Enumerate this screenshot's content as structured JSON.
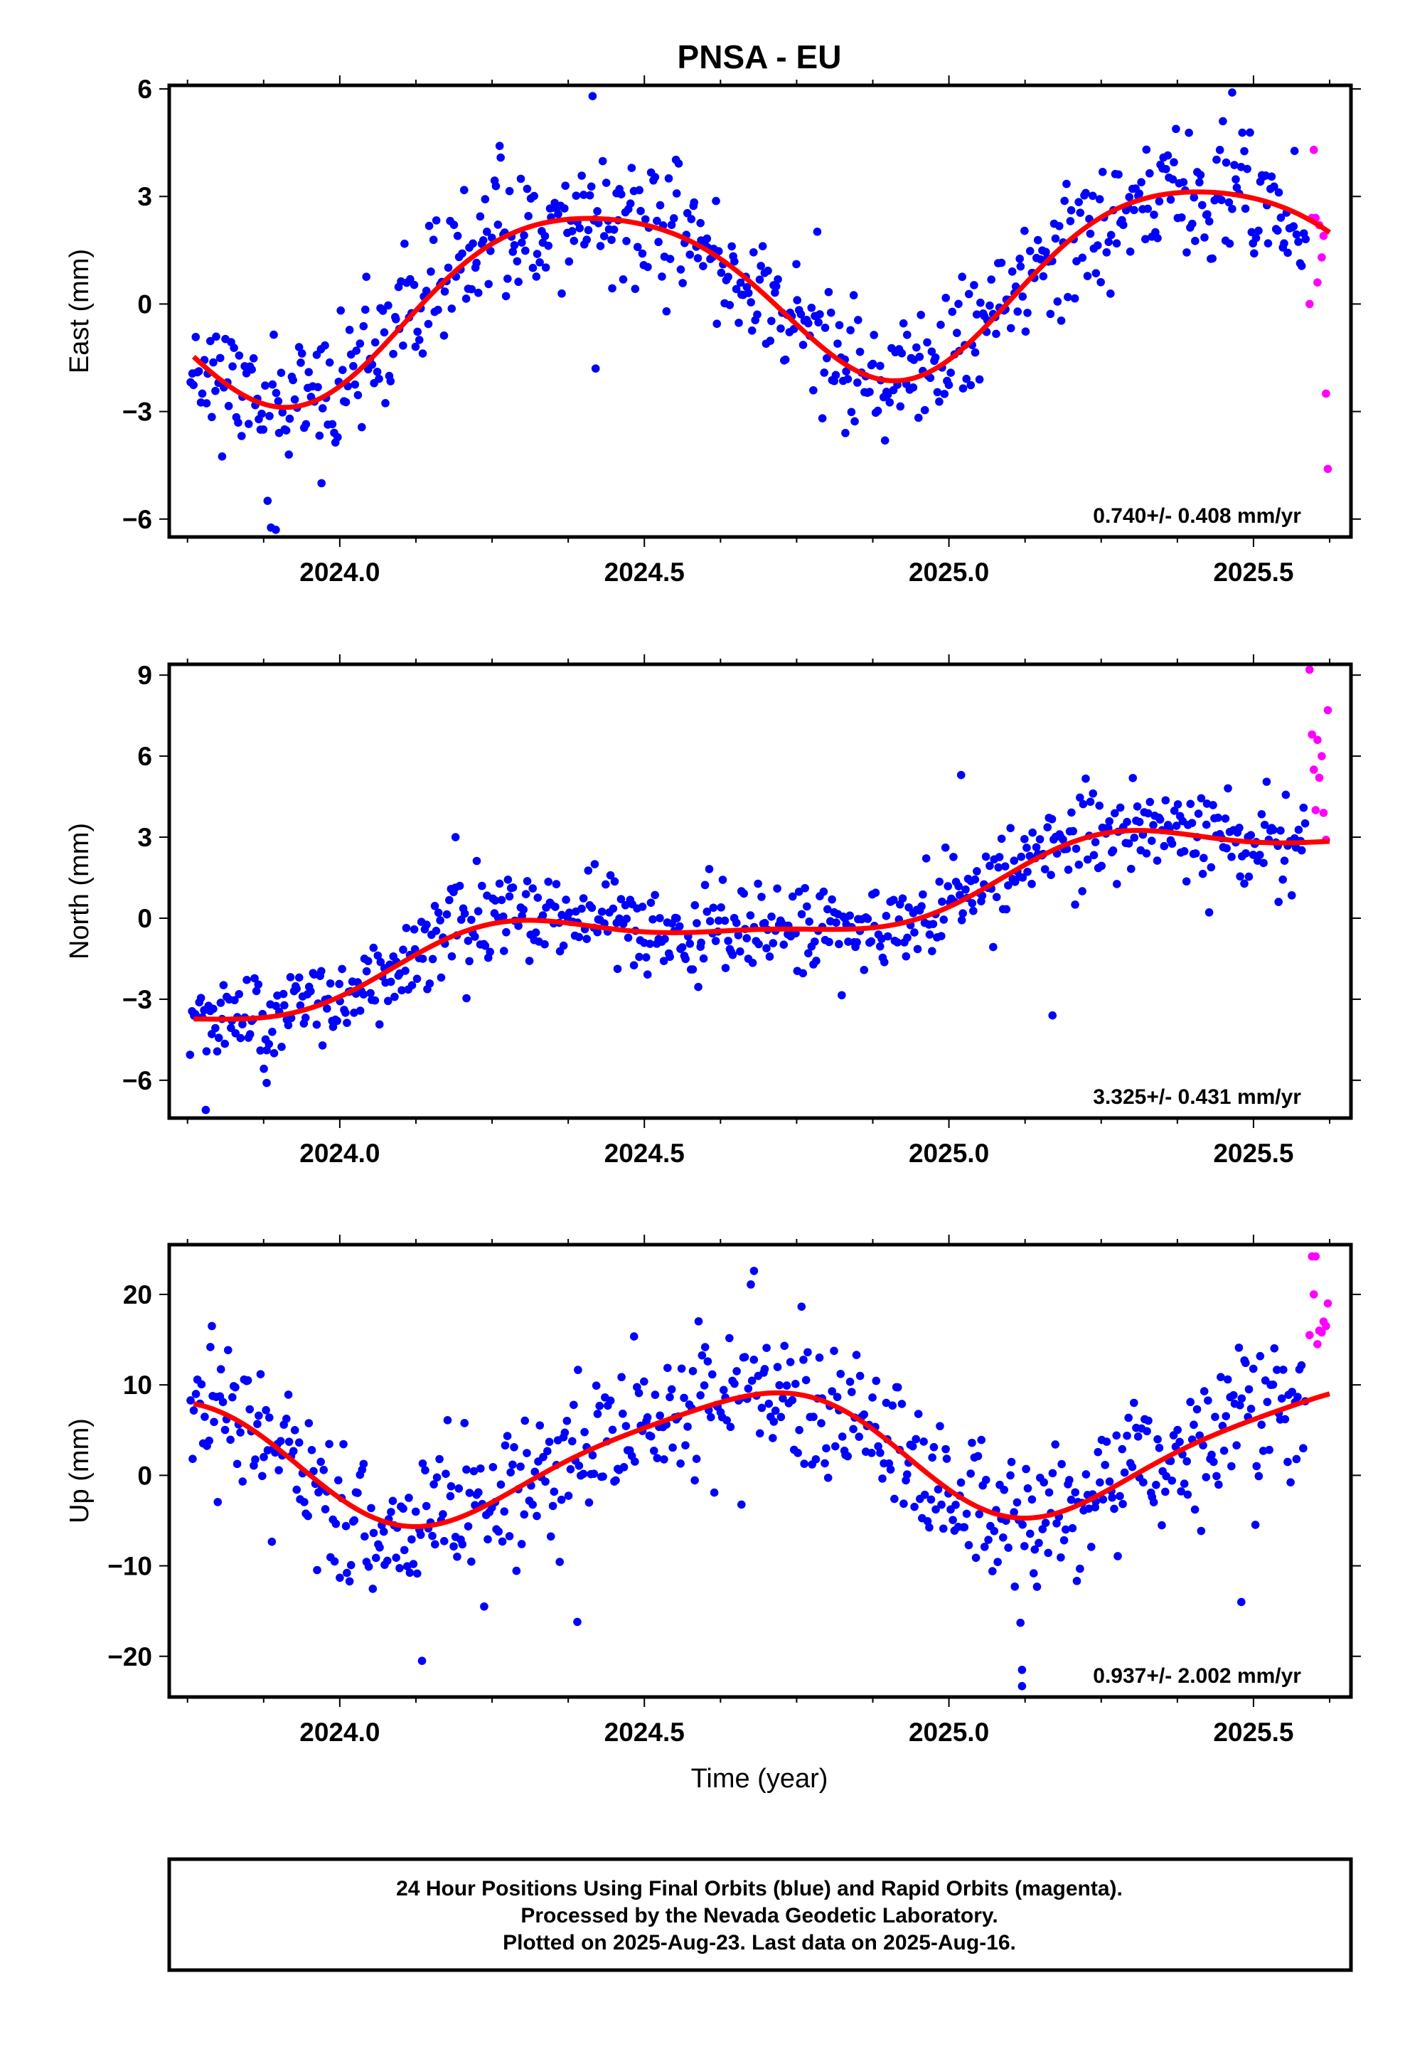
{
  "title": "PNSA - EU",
  "x_axis_label": "Time (year)",
  "footer": {
    "line1": "24 Hour Positions Using Final Orbits (blue) and Rapid Orbits (magenta).",
    "line2": "Processed by the Nevada Geodetic Laboratory.",
    "line3": "Plotted on 2025-Aug-23. Last data on 2025-Aug-16."
  },
  "colors": {
    "final": "#0000ff",
    "rapid": "#ff00ff",
    "model": "#ff0000",
    "frame": "#000000"
  },
  "chart_data": [
    {
      "type": "scatter",
      "component": "east",
      "ylabel": "East (mm)",
      "rate_label": "0.740+/- 0.408 mm/yr",
      "xlim": [
        2023.72,
        2025.66
      ],
      "ylim": [
        -6.5,
        6.1
      ],
      "yticks": [
        -6,
        -3,
        0,
        3,
        6
      ],
      "ytick_labels": [
        "−6",
        "−3",
        "0",
        "3",
        "6"
      ],
      "xticks": [
        2024.0,
        2024.5,
        2025.0,
        2025.5
      ],
      "xtick_labels": [
        "2024.0",
        "2024.5",
        "2025.0",
        "2025.5"
      ],
      "model": {
        "x0": 2023.76,
        "x1": 2025.625,
        "offset": -0.2,
        "rate": 0.74,
        "amp1": 2.45,
        "phase1": 0.16,
        "amp2": 0.35,
        "phase2": 0.05
      },
      "final_series": {
        "name": "Final Orbits",
        "x_start": 2023.755,
        "x_end": 2025.585,
        "count": 640,
        "noise_sd": 0.9,
        "seed": 11,
        "outliers": [
          [
            2023.895,
            -6.3
          ],
          [
            2024.415,
            5.8
          ],
          [
            2025.465,
            5.9
          ],
          [
            2024.83,
            -3.6
          ],
          [
            2023.97,
            -5.0
          ],
          [
            2024.42,
            -1.8
          ]
        ]
      },
      "rapid_series": {
        "name": "Rapid Orbits",
        "x": [
          2025.592,
          2025.596,
          2025.599,
          2025.602,
          2025.605,
          2025.608,
          2025.612,
          2025.615,
          2025.619,
          2025.622
        ],
        "y": [
          0.0,
          2.4,
          4.3,
          2.4,
          0.6,
          2.2,
          1.3,
          1.9,
          -2.5,
          -4.6
        ]
      }
    },
    {
      "type": "scatter",
      "component": "north",
      "ylabel": "North (mm)",
      "rate_label": "3.325+/- 0.431 mm/yr",
      "xlim": [
        2023.72,
        2025.66
      ],
      "ylim": [
        -7.4,
        9.4
      ],
      "yticks": [
        -6,
        -3,
        0,
        3,
        6,
        9
      ],
      "ytick_labels": [
        "−6",
        "−3",
        "0",
        "3",
        "6",
        "9"
      ],
      "xticks": [
        2024.0,
        2024.5,
        2025.0,
        2025.5
      ],
      "xtick_labels": [
        "2024.0",
        "2024.5",
        "2025.0",
        "2025.5"
      ],
      "model": {
        "x0": 2023.76,
        "x1": 2025.625,
        "offset": -3.05,
        "rate": 3.325,
        "amp1": 1.0,
        "phase1": 0.06,
        "amp2": 0.3,
        "phase2": 0.1
      },
      "final_series": {
        "name": "Final Orbits",
        "x_start": 2023.755,
        "x_end": 2025.585,
        "count": 640,
        "noise_sd": 0.85,
        "seed": 23,
        "outliers": [
          [
            2023.78,
            -7.1
          ],
          [
            2023.88,
            -6.1
          ],
          [
            2024.19,
            3.0
          ],
          [
            2025.17,
            -3.6
          ],
          [
            2025.02,
            5.3
          ]
        ]
      },
      "rapid_series": {
        "name": "Rapid Orbits",
        "x": [
          2025.592,
          2025.596,
          2025.599,
          2025.602,
          2025.605,
          2025.608,
          2025.612,
          2025.615,
          2025.619,
          2025.622
        ],
        "y": [
          9.2,
          6.8,
          5.5,
          4.0,
          6.6,
          5.2,
          6.0,
          3.9,
          2.9,
          7.7
        ]
      }
    },
    {
      "type": "scatter",
      "component": "up",
      "ylabel": "Up (mm)",
      "rate_label": "0.937+/- 2.002 mm/yr",
      "xlim": [
        2023.72,
        2025.66
      ],
      "ylim": [
        -24.5,
        25.5
      ],
      "yticks": [
        -20,
        -10,
        0,
        10,
        20
      ],
      "ytick_labels": [
        "−20",
        "−10",
        "0",
        "10",
        "20"
      ],
      "xticks": [
        2024.0,
        2024.5,
        2025.0,
        2025.5
      ],
      "xtick_labels": [
        "2024.0",
        "2024.5",
        "2025.0",
        "2025.5"
      ],
      "model": {
        "x0": 2023.76,
        "x1": 2025.625,
        "offset": 1.6,
        "rate": 0.937,
        "amp1": 6.8,
        "phase1": 0.41,
        "amp2": 1.2,
        "phase2": 0.2
      },
      "final_series": {
        "name": "Final Orbits",
        "x_start": 2023.755,
        "x_end": 2025.585,
        "count": 620,
        "noise_sd": 4.0,
        "seed": 37,
        "outliers": [
          [
            2023.79,
            16.5
          ],
          [
            2024.135,
            -20.5
          ],
          [
            2024.39,
            -16.2
          ],
          [
            2024.68,
            22.6
          ],
          [
            2025.12,
            -23.3
          ],
          [
            2025.12,
            -21.5
          ],
          [
            2025.48,
            -14.0
          ]
        ]
      },
      "rapid_series": {
        "name": "Rapid Orbits",
        "x": [
          2025.592,
          2025.596,
          2025.599,
          2025.602,
          2025.605,
          2025.608,
          2025.612,
          2025.615,
          2025.619,
          2025.622
        ],
        "y": [
          15.5,
          24.2,
          20.0,
          24.2,
          14.5,
          16.0,
          15.8,
          17.0,
          16.5,
          19.0
        ]
      }
    }
  ]
}
